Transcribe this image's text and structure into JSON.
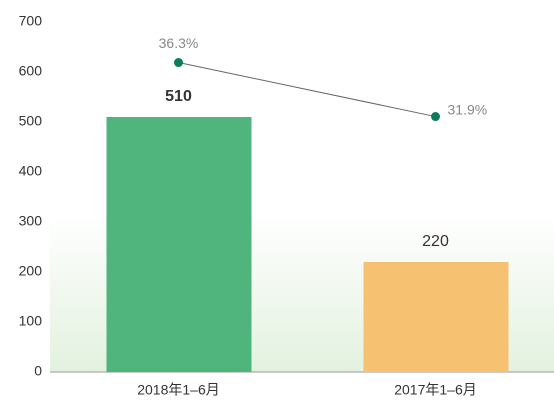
{
  "chart_data": {
    "type": "bar",
    "categories": [
      "2018年1–6月",
      "2017年1–6月"
    ],
    "values": [
      510,
      220
    ],
    "colors": [
      "#4fb57c",
      "#f6c170"
    ],
    "ylim": [
      0,
      700
    ],
    "yticks": [
      0,
      100,
      200,
      300,
      400,
      500,
      600,
      700
    ],
    "y2lim": [
      11.1,
      39.6
    ],
    "series": [
      {
        "type": "line",
        "axis": "y2",
        "color": "#0b7d5d",
        "values": [
          36.3,
          31.9
        ],
        "value_labels": [
          "36.3%",
          "31.9%"
        ]
      }
    ]
  }
}
